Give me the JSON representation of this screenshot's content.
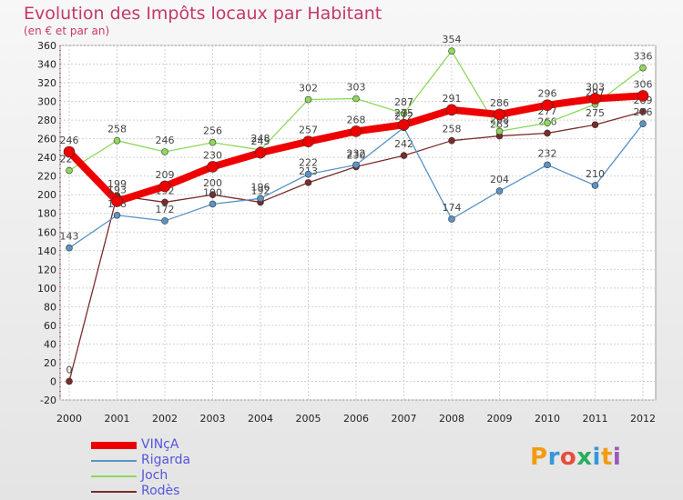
{
  "page": {
    "title": "Evolution des Impôts locaux par Habitant",
    "subtitle": "(en € et par an)",
    "logo": "Proxiti"
  },
  "chart_data": {
    "type": "line",
    "title": "Evolution des Impôts locaux par Habitant",
    "subtitle": "(en € et par an)",
    "xlabel": "",
    "ylabel": "",
    "categories": [
      "2000",
      "2001",
      "2002",
      "2003",
      "2004",
      "2005",
      "2006",
      "2007",
      "2008",
      "2009",
      "2010",
      "2011",
      "2012"
    ],
    "ylim": [
      -20,
      360
    ],
    "yticks": [
      -20,
      0,
      20,
      40,
      60,
      80,
      100,
      120,
      140,
      160,
      180,
      200,
      220,
      240,
      260,
      280,
      300,
      320,
      340,
      360
    ],
    "grid": true,
    "legend_position": "bottom-left",
    "series": [
      {
        "name": "Rodès",
        "color": "#7a2b2b",
        "lineWidth": 1.3,
        "values": [
          0,
          199,
          192,
          200,
          192,
          213,
          230,
          242,
          258,
          263,
          266,
          275,
          289
        ]
      },
      {
        "name": "Joch",
        "color": "#8ed85a",
        "lineWidth": 1.3,
        "values": [
          226,
          258,
          246,
          256,
          248,
          302,
          303,
          287,
          354,
          268,
          277,
          297,
          336
        ]
      },
      {
        "name": "Rigarda",
        "color": "#5b93c7",
        "lineWidth": 1.3,
        "values": [
          143,
          178,
          172,
          190,
          196,
          222,
          232,
          272,
          174,
          204,
          232,
          210,
          276
        ]
      },
      {
        "name": "VINçA",
        "color": "#ee0000",
        "lineWidth": 8,
        "values": [
          246,
          193,
          209,
          230,
          245,
          257,
          268,
          275,
          291,
          286,
          296,
          303,
          306
        ]
      }
    ],
    "legend_order": [
      "VINçA",
      "Rigarda",
      "Joch",
      "Rodès"
    ]
  }
}
